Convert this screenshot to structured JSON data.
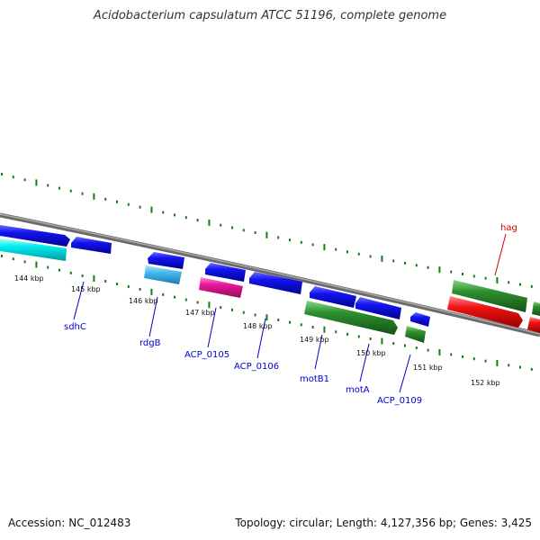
{
  "title": "Acidobacterium capsulatum ATCC 51196, complete genome",
  "footer": {
    "accession": "Accession: NC_012483",
    "summary": "Topology: circular; Length: 4,127,356 bp; Genes: 3,425"
  },
  "scale_labels": [
    "144 kbp",
    "145 kbp",
    "146 kbp",
    "147 kbp",
    "148 kbp",
    "149 kbp",
    "150 kbp",
    "151 kbp",
    "152 kbp"
  ],
  "gene_labels": [
    "sdhC",
    "rdgB",
    "ACP_0105",
    "ACP_0106",
    "motB1",
    "motA",
    "ACP_0109",
    "hag"
  ],
  "colors": {
    "backbone": "#808080",
    "tick": "#1a7a1a",
    "blue_gene": "#1010e8",
    "cyan_gene": "#00e5ee",
    "sky_gene": "#40b8f0",
    "magenta_gene": "#e0189a",
    "green_gene": "#2e8b2e",
    "red_gene": "#ee1010",
    "label_blue": "#0000cc",
    "label_red": "#cc0000"
  }
}
